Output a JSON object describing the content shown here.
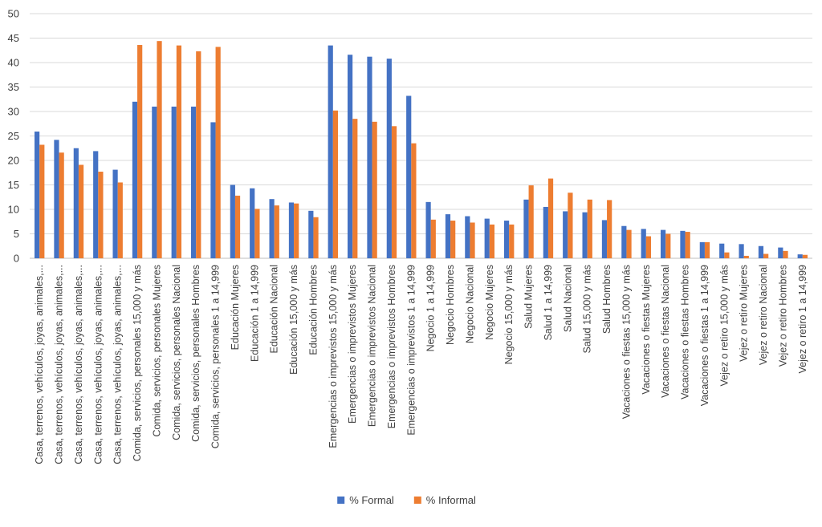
{
  "chart_data": {
    "type": "bar",
    "title": "",
    "xlabel": "",
    "ylabel": "",
    "ylim": [
      0,
      50
    ],
    "yticks": [
      0,
      5,
      10,
      15,
      20,
      25,
      30,
      35,
      40,
      45,
      50
    ],
    "grid": true,
    "legend_position": "bottom",
    "categories": [
      "Casa, terrenos, vehículos, joyas, animales,...",
      "Casa, terrenos, vehículos, joyas, animales,...",
      "Casa, terrenos, vehículos, joyas, animales,...",
      "Casa, terrenos, vehículos, joyas, animales,...",
      "Casa, terrenos, vehículos, joyas, animales,...",
      "Comida, servicios, personales 15,000 y más",
      "Comida, servicios, personales Mujeres",
      "Comida, servicios, personales Nacional",
      "Comida, servicios, personales Hombres",
      "Comida, servicios, personales 1 a 14,999",
      "Educación Mujeres",
      "Educación 1 a 14,999",
      "Educación Nacional",
      "Educación 15,000 y más",
      "Educación Hombres",
      "Emergencias o imprevistos 15,000 y más",
      "Emergencias o imprevistos Mujeres",
      "Emergencias o imprevistos Nacional",
      "Emergencias o imprevistos Hombres",
      "Emergencias o imprevistos 1 a 14,999",
      "Negocio 1 a 14,999",
      "Negocio Hombres",
      "Negocio Nacional",
      "Negocio Mujeres",
      "Negocio 15,000 y más",
      "Salud Mujeres",
      "Salud 1 a 14,999",
      "Salud Nacional",
      "Salud 15,000 y más",
      "Salud Hombres",
      "Vacaciones o fiestas 15,000 y más",
      "Vacaciones o fiestas Mujeres",
      "Vacaciones o fiestas Nacional",
      "Vacaciones o fiestas Hombres",
      "Vacaciones o fiestas 1 a 14,999",
      "Vejez o retiro 15,000 y más",
      "Vejez o retiro Mujeres",
      "Vejez o retiro Nacional",
      "Vejez o retiro Hombres",
      "Vejez o retiro 1 a 14,999"
    ],
    "series": [
      {
        "name": "% Formal",
        "color": "#4472C4",
        "values": [
          25.9,
          24.2,
          22.5,
          21.9,
          18.1,
          32.0,
          31.0,
          31.0,
          31.0,
          27.8,
          15.0,
          14.3,
          12.1,
          11.4,
          9.7,
          43.5,
          41.6,
          41.2,
          40.8,
          33.2,
          11.5,
          9.0,
          8.6,
          8.1,
          7.7,
          12.0,
          10.5,
          9.6,
          9.4,
          7.8,
          6.6,
          6.0,
          5.8,
          5.6,
          3.3,
          3.0,
          2.9,
          2.5,
          2.2,
          0.8
        ]
      },
      {
        "name": "% Informal",
        "color": "#ED7D31",
        "values": [
          23.2,
          21.6,
          19.1,
          17.7,
          15.5,
          43.6,
          44.4,
          43.5,
          42.3,
          43.2,
          12.8,
          10.1,
          10.8,
          11.2,
          8.4,
          30.2,
          28.5,
          27.9,
          27.0,
          23.5,
          7.9,
          7.7,
          7.3,
          6.9,
          6.9,
          14.9,
          16.3,
          13.4,
          12.0,
          11.9,
          5.8,
          4.5,
          5.0,
          5.4,
          3.3,
          1.2,
          0.5,
          0.9,
          1.5,
          0.7
        ]
      }
    ]
  }
}
